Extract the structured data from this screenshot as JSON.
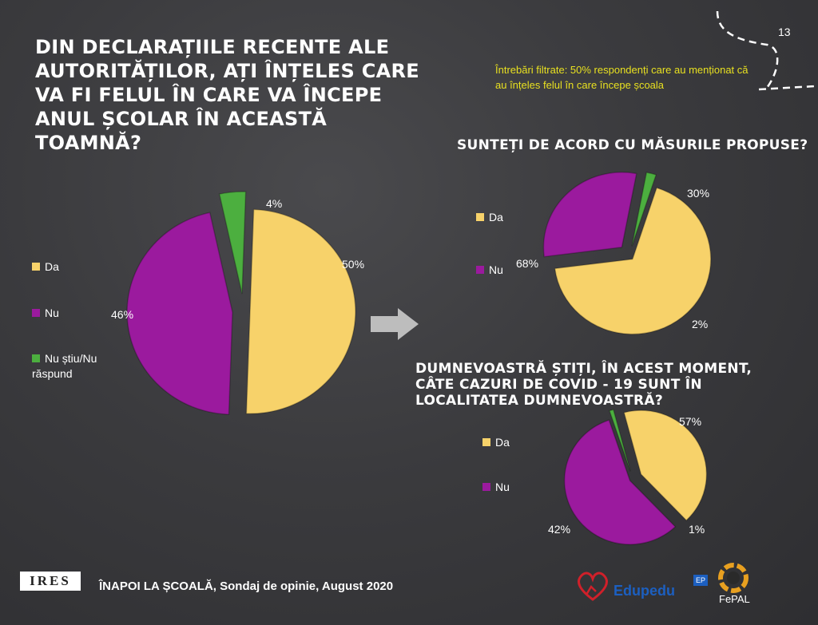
{
  "page_number": "13",
  "filter_note": "Întrebări filtrate: 50% respondenți care au menționat că au înțeles felul în care începe școala",
  "footer": {
    "survey_text": "ÎNAPOI LA ȘCOALĂ, Sondaj de opinie, August 2020",
    "ires_logo": "IRES",
    "edupedu_logo": "Edupedu",
    "ep_badge": "EP",
    "fepal_logo": "FePAL"
  },
  "colors": {
    "da": "#f7d26a",
    "nu": "#9b1a9e",
    "nu_stiu": "#4caf3f"
  },
  "chart_data": [
    {
      "type": "pie",
      "title": "DIN DECLARAȚIILE RECENTE ALE AUTORITĂȚILOR, AȚI ÎNȚELES CARE VA FI FELUL ÎN CARE VA ÎNCEPE ANUL ȘCOLAR ÎN ACEASTĂ TOAMNĂ?",
      "legend": [
        "Da",
        "Nu",
        "Nu știu/Nu răspund"
      ],
      "legend_position": "left",
      "slices": [
        {
          "label": "Da",
          "value": 50,
          "display": "50%"
        },
        {
          "label": "Nu",
          "value": 46,
          "display": "46%"
        },
        {
          "label": "Nu știu/Nu răspund",
          "value": 4,
          "display": "4%"
        }
      ]
    },
    {
      "type": "pie",
      "title": "SUNTEȚI DE ACORD CU MĂSURILE PROPUSE?",
      "legend": [
        "Da",
        "Nu"
      ],
      "legend_position": "left",
      "slices": [
        {
          "label": "Da",
          "value": 68,
          "display": "68%"
        },
        {
          "label": "Nu",
          "value": 30,
          "display": "30%"
        },
        {
          "label": "Nu știu/Nu răspund",
          "value": 2,
          "display": "2%"
        }
      ]
    },
    {
      "type": "pie",
      "title": "DUMNEVOASTRĂ ȘTIȚI, ÎN ACEST MOMENT, CÂTE CAZURI DE COVID - 19 SUNT ÎN LOCALITATEA DUMNEVOASTRĂ?",
      "legend": [
        "Da",
        "Nu"
      ],
      "legend_position": "left",
      "slices": [
        {
          "label": "Da",
          "value": 42,
          "display": "42%"
        },
        {
          "label": "Nu",
          "value": 57,
          "display": "57%"
        },
        {
          "label": "Nu știu/Nu răspund",
          "value": 1,
          "display": "1%"
        }
      ]
    }
  ]
}
